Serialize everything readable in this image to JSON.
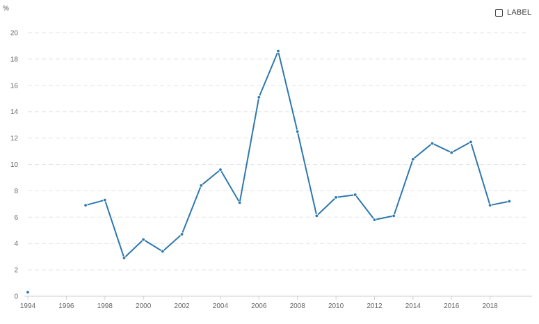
{
  "controls": {
    "label_toggle_text": "LABEL",
    "label_checked": false
  },
  "chart_data": {
    "type": "line",
    "ylabel": "%",
    "xlim": [
      1994,
      2020
    ],
    "ylim": [
      0,
      20
    ],
    "x_ticks": [
      "1994",
      "1996",
      "1998",
      "2000",
      "2002",
      "2004",
      "2006",
      "2008",
      "2010",
      "2012",
      "2014",
      "2016",
      "2018"
    ],
    "y_ticks": [
      "0",
      "2",
      "4",
      "6",
      "8",
      "10",
      "12",
      "14",
      "16",
      "18",
      "20"
    ],
    "grid": true,
    "color": "#2e78ad",
    "x": [
      1994,
      1997,
      1998,
      1999,
      2000,
      2001,
      2002,
      2003,
      2004,
      2005,
      2006,
      2007,
      2008,
      2009,
      2010,
      2011,
      2012,
      2013,
      2014,
      2015,
      2016,
      2017,
      2018,
      2019
    ],
    "values": [
      0.3,
      6.9,
      7.3,
      2.9,
      4.3,
      3.4,
      4.7,
      8.4,
      9.6,
      7.1,
      15.1,
      18.6,
      12.5,
      6.1,
      7.5,
      7.7,
      5.8,
      6.1,
      10.4,
      11.6,
      10.9,
      11.7,
      6.9,
      7.2
    ]
  }
}
